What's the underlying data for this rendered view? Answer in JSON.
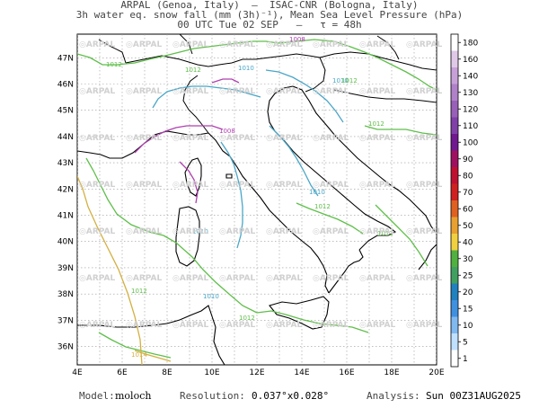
{
  "header": {
    "line1": "ARPAL (Genoa, Italy)  —  ISAC-CNR (Bologna, Italy)",
    "line2": "3h water eq. snow fall (mm (3h)⁻¹), Mean Sea Level Pressure (hPa)",
    "line3": "00 UTC Tue 02 SEP   —   τ = 48h"
  },
  "map": {
    "lat_labels": [
      "47N",
      "46N",
      "45N",
      "44N",
      "43N",
      "42N",
      "41N",
      "40N",
      "39N",
      "38N",
      "37N",
      "36N"
    ],
    "lon_labels": [
      "4E",
      "6E",
      "8E",
      "10E",
      "12E",
      "14E",
      "16E",
      "18E",
      "20E"
    ],
    "watermark": "ARPAL",
    "isobar_labels": [
      {
        "text": "1012",
        "color": "#5fbf4a"
      },
      {
        "text": "1010",
        "color": "#4aa6c8"
      },
      {
        "text": "1008",
        "color": "#b040b0"
      },
      {
        "text": "1008",
        "color": "#b040b0"
      },
      {
        "text": "1010",
        "color": "#4aa6c8"
      },
      {
        "text": "1010",
        "color": "#4aa6c8"
      },
      {
        "text": "1010",
        "color": "#4aa6c8"
      },
      {
        "text": "1012",
        "color": "#5fbf4a"
      },
      {
        "text": "1012",
        "color": "#5fbf4a"
      },
      {
        "text": "1012",
        "color": "#5fbf4a"
      },
      {
        "text": "1012",
        "color": "#5fbf4a"
      },
      {
        "text": "1012",
        "color": "#5fbf4a"
      },
      {
        "text": "1010",
        "color": "#4aa6c8"
      },
      {
        "text": "1014",
        "color": "#d4b040"
      },
      {
        "text": "1012",
        "color": "#5fbf4a"
      },
      {
        "text": "1012",
        "color": "#5fbf4a"
      }
    ]
  },
  "colorbar": {
    "levels": [
      "180",
      "160",
      "140",
      "130",
      "120",
      "110",
      "100",
      "90",
      "80",
      "70",
      "60",
      "50",
      "40",
      "30",
      "25",
      "20",
      "15",
      "10",
      "5",
      "1"
    ],
    "colors": [
      "#ffffff",
      "#e0c8e8",
      "#c8a0d8",
      "#b080c8",
      "#9860b8",
      "#8040a8",
      "#701890",
      "#a01060",
      "#c01030",
      "#d02020",
      "#e06020",
      "#e8a030",
      "#f0d040",
      "#50b040",
      "#40a060",
      "#2080c0",
      "#4090e0",
      "#80b8f0",
      "#c0e0ff",
      "#ffffff"
    ]
  },
  "footer": {
    "model_label": "Model:",
    "model_value": "moloch",
    "resolution_label": "Resolution:",
    "resolution_value": "0.037°x0.028°",
    "analysis_label": "Analysis:",
    "analysis_value": "Sun 00Z31AUG2025"
  }
}
